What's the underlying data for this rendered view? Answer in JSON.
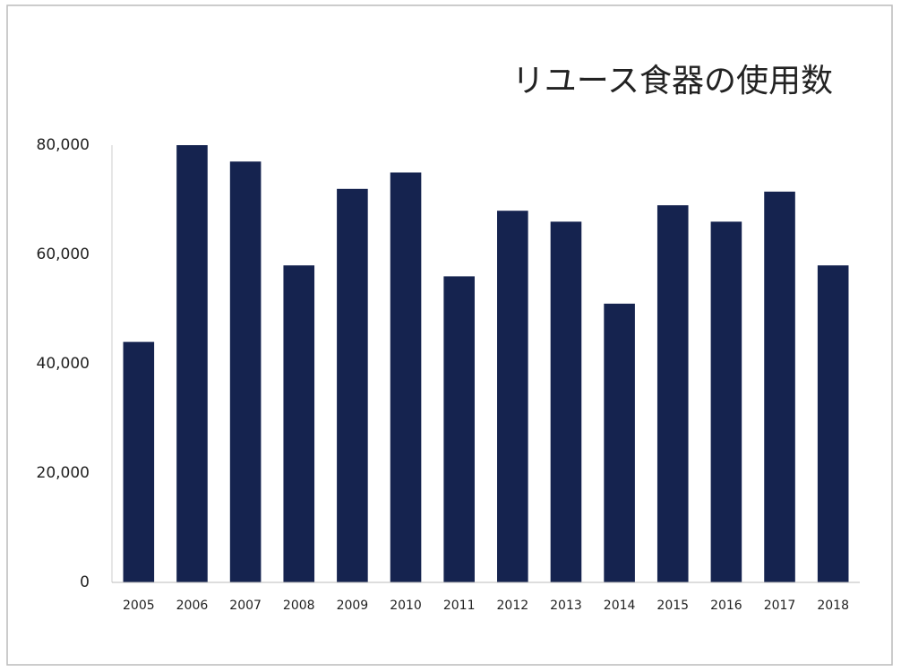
{
  "chart_data": {
    "type": "bar",
    "title": "リユース食器の使用数",
    "categories": [
      "2005",
      "2006",
      "2007",
      "2008",
      "2009",
      "2010",
      "2011",
      "2012",
      "2013",
      "2014",
      "2015",
      "2016",
      "2017",
      "2018"
    ],
    "values": [
      44000,
      80000,
      77000,
      58000,
      72000,
      75000,
      56000,
      68000,
      66000,
      51000,
      69000,
      66000,
      71500,
      58000
    ],
    "color": "#15234f",
    "ylim": [
      0,
      80000
    ],
    "yticks": [
      0,
      {
        "value": 20000,
        "label": "20,000"
      },
      {
        "value": 40000,
        "label": "40,000"
      },
      {
        "value": 60000,
        "label": "60,000"
      },
      {
        "value": 80000,
        "label": "80,000"
      }
    ],
    "grid": false
  }
}
